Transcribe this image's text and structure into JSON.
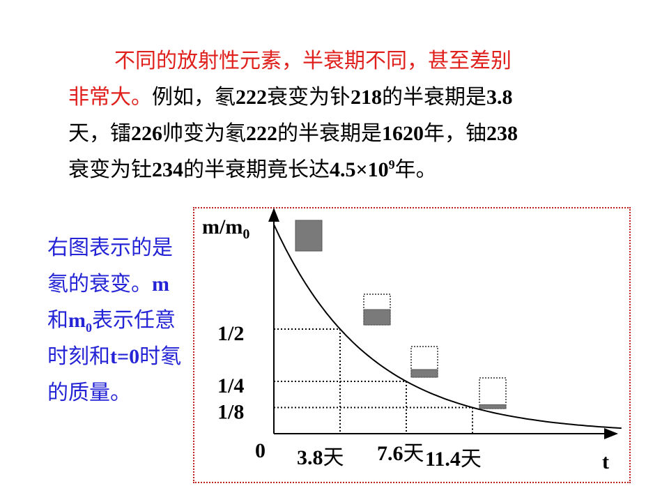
{
  "paragraph": {
    "line1_red": "不同的放射性元素，半衰期不同，甚至差别",
    "line2_red": "非常大。",
    "seg_a": "例如，氡",
    "num_222a": "222",
    "seg_b": "衰变为钋",
    "num_218": "218",
    "seg_c": "的半衰期是",
    "num_3_8": "3.8",
    "seg_d": "天，镭",
    "num_226": "226",
    "seg_e": "帅变为氡",
    "num_222b": "222",
    "seg_f": "的半衰期是",
    "num_1620": "1620",
    "seg_g": "年，铀",
    "num_238": "238",
    "seg_h": "衰变为钍",
    "num_234": "234",
    "seg_i": "的半衰期竟长达",
    "num_4_5": "4.5×10",
    "exp_9": "9",
    "seg_j": "年。"
  },
  "side_note": {
    "t1": "右图表示的是氡的衰变。",
    "m": "m",
    "he": "和",
    "m0": "m",
    "m0_sub": "0",
    "t2": "表示任意时刻和",
    "t0": "t=0",
    "t3": "时氡的质量。"
  },
  "chart_data": {
    "type": "line",
    "ylabel": "m/m",
    "ylabel_sub": "0",
    "xlabel": "t",
    "origin_label": "0",
    "y_ticks": [
      {
        "label": "1/2",
        "value": 0.5
      },
      {
        "label": "1/4",
        "value": 0.25
      },
      {
        "label": "1/8",
        "value": 0.125
      }
    ],
    "x_ticks": [
      {
        "num": "3.8",
        "unit": "天",
        "value": 3.8
      },
      {
        "num": "7.6",
        "unit": "天",
        "value": 7.6
      },
      {
        "num": "11.4",
        "unit": "天",
        "value": 11.4
      }
    ],
    "series": [
      {
        "x": [
          0,
          3.8,
          7.6,
          11.4,
          15.2,
          19.95
        ],
        "y": [
          1,
          0.5,
          0.25,
          0.125,
          0.0625,
          0.0263
        ]
      }
    ],
    "xlim": [
      0,
      20
    ],
    "ylim": [
      0,
      1
    ],
    "sample_boxes": [
      {
        "remaining": 1.0
      },
      {
        "remaining": 0.5
      },
      {
        "remaining": 0.25
      },
      {
        "remaining": 0.125
      }
    ],
    "colors": {
      "curve": "#000000",
      "fill": "#7a7a7a",
      "border": "#c0201c"
    }
  }
}
